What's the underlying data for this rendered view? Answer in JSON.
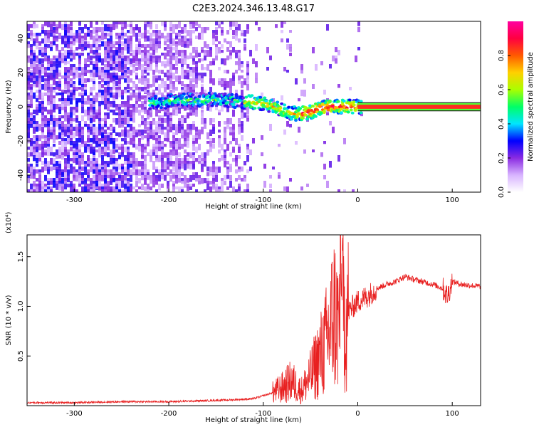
{
  "title": "C2E3.2024.346.13.48.G17",
  "chart_data": [
    {
      "type": "heatmap",
      "xlabel": "Height of straight line (km)",
      "ylabel": "Frequency (Hz)",
      "xlim": [
        -350,
        130
      ],
      "ylim": [
        -50,
        50
      ],
      "xticks": [
        -300,
        -200,
        -100,
        0,
        100
      ],
      "yticks": [
        -40,
        -20,
        0,
        20,
        40
      ],
      "colorbar": {
        "label": "Normalized spectral amplitude",
        "range": [
          0,
          1
        ],
        "ticks": [
          "0.0",
          "0.2",
          "0.4",
          "0.6",
          "0.8"
        ],
        "colors": [
          "#ffffff",
          "#d8b4ff",
          "#8a2be2",
          "#0000ff",
          "#00e5ff",
          "#00ff66",
          "#aaff00",
          "#ffd000",
          "#ff5a00",
          "#ff0040",
          "#ff00a0"
        ]
      },
      "ridge": {
        "x": [
          -220,
          -200,
          -180,
          -160,
          -140,
          -120,
          -100,
          -90,
          -80,
          -70,
          -60,
          -50,
          -40,
          -30,
          -20,
          -10,
          0,
          20,
          60,
          100,
          130
        ],
        "frequency": [
          2,
          3,
          4,
          4,
          4,
          3,
          2,
          0,
          -2,
          -4,
          -4,
          -3,
          -1,
          0,
          0,
          0,
          0,
          0,
          0,
          0,
          0
        ]
      },
      "grid": false
    },
    {
      "type": "line",
      "xlabel": "Height of straight line (km)",
      "ylabel": "SNR (10 * v/v)",
      "y_multiplier_label": "(x10⁴)",
      "xlim": [
        -350,
        130
      ],
      "ylim": [
        0,
        1.72
      ],
      "xticks": [
        -300,
        -200,
        -100,
        0,
        100
      ],
      "yticks": [
        "0.5",
        "1.0",
        "1.5"
      ],
      "series": [
        {
          "color": "#e82020",
          "x": [
            -350,
            -300,
            -250,
            -200,
            -160,
            -130,
            -110,
            -100,
            -90,
            -80,
            -70,
            -60,
            -50,
            -45,
            -40,
            -35,
            -30,
            -25,
            -20,
            -17,
            -15,
            -10,
            -5,
            0,
            10,
            20,
            30,
            40,
            50,
            60,
            80,
            90,
            95,
            100,
            110,
            130
          ],
          "values": [
            0.03,
            0.03,
            0.04,
            0.04,
            0.05,
            0.06,
            0.07,
            0.1,
            0.13,
            0.18,
            0.25,
            0.15,
            0.3,
            0.4,
            0.5,
            0.6,
            0.75,
            0.95,
            0.8,
            1.45,
            0.9,
            0.95,
            1.0,
            1.05,
            1.1,
            1.18,
            1.22,
            1.25,
            1.3,
            1.27,
            1.22,
            1.18,
            1.1,
            1.25,
            1.22,
            1.2
          ]
        }
      ]
    }
  ]
}
